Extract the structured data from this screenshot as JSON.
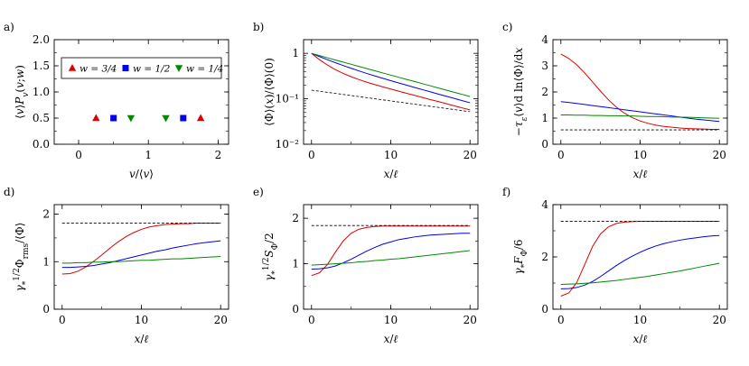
{
  "chart_data": [
    {
      "panel": "a",
      "panel_label": "a)",
      "type": "scatter",
      "xlabel": "v/⟨v⟩",
      "ylabel": "⟨v⟩P_v(v;w)",
      "xlim": [
        -0.35,
        2.15
      ],
      "ylim": [
        0,
        2
      ],
      "xscale": "linear",
      "yscale": "linear",
      "xticks": [
        0,
        1,
        2
      ],
      "xtick_labels": [
        "0",
        "1",
        "2"
      ],
      "yticks": [
        0,
        0.5,
        1,
        1.5,
        2
      ],
      "ytick_labels": [
        "0.0",
        "0.5",
        "1.0",
        "1.5",
        "2.0"
      ],
      "legend_position": "top-center",
      "series": [
        {
          "name": "w = 3/4",
          "label": "w = 3/4",
          "color": "#dd0000",
          "marker": "triangle-up",
          "x": [
            0.25,
            1.75
          ],
          "y": [
            0.5,
            0.5
          ]
        },
        {
          "name": "w = 1/2",
          "label": "w = 1/2",
          "color": "#0000ee",
          "marker": "square",
          "x": [
            0.5,
            1.5
          ],
          "y": [
            0.5,
            0.5
          ]
        },
        {
          "name": "w = 1/4",
          "label": "w = 1/4",
          "color": "#008800",
          "marker": "triangle-down",
          "x": [
            0.75,
            1.25
          ],
          "y": [
            0.5,
            0.5
          ]
        }
      ]
    },
    {
      "panel": "b",
      "panel_label": "b)",
      "type": "line",
      "xlabel": "x/ℓ",
      "ylabel": "⟨Φ⟩(x)/⟨Φ⟩(0)",
      "xlim": [
        -1,
        21
      ],
      "ylim": [
        0.01,
        2
      ],
      "xscale": "linear",
      "yscale": "log",
      "xticks": [
        0,
        10,
        20
      ],
      "xtick_labels": [
        "0",
        "10",
        "20"
      ],
      "yticks": [
        0.01,
        0.1,
        1
      ],
      "ytick_labels": [
        "10⁻²",
        "10⁻¹",
        "1"
      ],
      "series": [
        {
          "name": "w = 3/4",
          "color": "#dd0000",
          "dash": false,
          "x": [
            0,
            1,
            2,
            3,
            4,
            5,
            6,
            7,
            8,
            9,
            10,
            11,
            12,
            13,
            14,
            15,
            16,
            17,
            18,
            19,
            20
          ],
          "y": [
            1,
            0.727,
            0.554,
            0.44,
            0.362,
            0.306,
            0.264,
            0.231,
            0.205,
            0.183,
            0.164,
            0.147,
            0.132,
            0.119,
            0.107,
            0.096,
            0.087,
            0.078,
            0.07,
            0.063,
            0.057
          ]
        },
        {
          "name": "w = 1/2",
          "color": "#0000ee",
          "dash": false,
          "x": [
            0,
            1,
            2,
            3,
            4,
            5,
            6,
            7,
            8,
            9,
            10,
            11,
            12,
            13,
            14,
            15,
            16,
            17,
            18,
            19,
            20
          ],
          "y": [
            1,
            0.85,
            0.726,
            0.624,
            0.539,
            0.469,
            0.41,
            0.36,
            0.318,
            0.282,
            0.25,
            0.223,
            0.199,
            0.178,
            0.159,
            0.142,
            0.127,
            0.114,
            0.102,
            0.091,
            0.082
          ]
        },
        {
          "name": "w = 1/4",
          "color": "#008800",
          "dash": false,
          "x": [
            0,
            1,
            2,
            3,
            4,
            5,
            6,
            7,
            8,
            9,
            10,
            11,
            12,
            13,
            14,
            15,
            16,
            17,
            18,
            19,
            20
          ],
          "y": [
            1,
            0.894,
            0.8,
            0.716,
            0.641,
            0.574,
            0.514,
            0.461,
            0.413,
            0.37,
            0.332,
            0.298,
            0.267,
            0.24,
            0.215,
            0.193,
            0.173,
            0.155,
            0.139,
            0.125,
            0.112
          ]
        },
        {
          "name": "asymptote",
          "color": "#000000",
          "dash": true,
          "x": [
            0,
            20
          ],
          "y": [
            0.155,
            0.052
          ]
        }
      ]
    },
    {
      "panel": "c",
      "panel_label": "c)",
      "type": "line",
      "xlabel": "x/ℓ",
      "ylabel": "−τ_ε⟨v⟩d ln⟨Φ⟩/dx",
      "xlim": [
        -1,
        21
      ],
      "ylim": [
        0,
        4
      ],
      "xscale": "linear",
      "yscale": "linear",
      "xticks": [
        0,
        10,
        20
      ],
      "xtick_labels": [
        "0",
        "10",
        "20"
      ],
      "yticks": [
        0,
        1,
        2,
        3,
        4
      ],
      "ytick_labels": [
        "0",
        "1",
        "2",
        "3",
        "4"
      ],
      "series": [
        {
          "name": "w = 3/4",
          "color": "#dd0000",
          "dash": false,
          "x": [
            0,
            1,
            2,
            3,
            4,
            5,
            6,
            7,
            8,
            9,
            10,
            11,
            12,
            13,
            14,
            15,
            16,
            17,
            18,
            19,
            20
          ],
          "y": [
            3.45,
            3.28,
            3.04,
            2.73,
            2.38,
            2.03,
            1.7,
            1.42,
            1.19,
            1.02,
            0.89,
            0.8,
            0.73,
            0.68,
            0.65,
            0.62,
            0.6,
            0.59,
            0.58,
            0.57,
            0.57
          ]
        },
        {
          "name": "w = 1/2",
          "color": "#0000ee",
          "dash": false,
          "x": [
            0,
            1,
            2,
            3,
            4,
            5,
            6,
            7,
            8,
            9,
            10,
            11,
            12,
            13,
            14,
            15,
            16,
            17,
            18,
            19,
            20
          ],
          "y": [
            1.63,
            1.6,
            1.56,
            1.52,
            1.48,
            1.44,
            1.4,
            1.36,
            1.32,
            1.28,
            1.24,
            1.2,
            1.16,
            1.12,
            1.08,
            1.04,
            1.0,
            0.96,
            0.93,
            0.9,
            0.87
          ]
        },
        {
          "name": "w = 1/4",
          "color": "#008800",
          "dash": false,
          "x": [
            0,
            1,
            2,
            3,
            4,
            5,
            6,
            7,
            8,
            9,
            10,
            11,
            12,
            13,
            14,
            15,
            16,
            17,
            18,
            19,
            20
          ],
          "y": [
            1.12,
            1.12,
            1.11,
            1.11,
            1.1,
            1.1,
            1.09,
            1.09,
            1.08,
            1.08,
            1.07,
            1.06,
            1.06,
            1.05,
            1.04,
            1.04,
            1.03,
            1.02,
            1.01,
            1.0,
            0.99
          ]
        },
        {
          "name": "asymptote",
          "color": "#000000",
          "dash": true,
          "x": [
            0,
            20
          ],
          "y": [
            0.55,
            0.55
          ]
        }
      ]
    },
    {
      "panel": "d",
      "panel_label": "d)",
      "type": "line",
      "xlabel": "x/ℓ",
      "ylabel": "γ*^(1/2) Φrms/⟨Φ⟩",
      "xlim": [
        -1,
        21
      ],
      "ylim": [
        0,
        2.2
      ],
      "xscale": "linear",
      "yscale": "linear",
      "xticks": [
        0,
        10,
        20
      ],
      "xtick_labels": [
        "0",
        "10",
        "20"
      ],
      "yticks": [
        0,
        1,
        2
      ],
      "ytick_labels": [
        "0",
        "1",
        "2"
      ],
      "series": [
        {
          "name": "w = 3/4",
          "color": "#dd0000",
          "dash": false,
          "x": [
            0,
            1,
            2,
            3,
            4,
            5,
            6,
            7,
            8,
            9,
            10,
            11,
            12,
            13,
            14,
            15,
            16,
            17,
            18,
            19,
            20
          ],
          "y": [
            0.74,
            0.75,
            0.8,
            0.89,
            1.01,
            1.14,
            1.28,
            1.41,
            1.52,
            1.61,
            1.68,
            1.73,
            1.76,
            1.78,
            1.79,
            1.8,
            1.8,
            1.81,
            1.81,
            1.81,
            1.81
          ]
        },
        {
          "name": "w = 1/2",
          "color": "#0000ee",
          "dash": false,
          "x": [
            0,
            1,
            2,
            3,
            4,
            5,
            6,
            7,
            8,
            9,
            10,
            11,
            12,
            13,
            14,
            15,
            16,
            17,
            18,
            19,
            20
          ],
          "y": [
            0.88,
            0.88,
            0.89,
            0.9,
            0.92,
            0.95,
            0.98,
            1.02,
            1.06,
            1.1,
            1.14,
            1.18,
            1.22,
            1.25,
            1.29,
            1.32,
            1.35,
            1.38,
            1.4,
            1.42,
            1.44
          ]
        },
        {
          "name": "w = 1/4",
          "color": "#008800",
          "dash": false,
          "x": [
            0,
            1,
            2,
            3,
            4,
            5,
            6,
            7,
            8,
            9,
            10,
            11,
            12,
            13,
            14,
            15,
            16,
            17,
            18,
            19,
            20
          ],
          "y": [
            0.97,
            0.97,
            0.98,
            0.98,
            0.99,
            0.99,
            1.0,
            1.0,
            1.01,
            1.02,
            1.03,
            1.03,
            1.04,
            1.05,
            1.06,
            1.06,
            1.07,
            1.08,
            1.09,
            1.1,
            1.11
          ]
        },
        {
          "name": "asymptote",
          "color": "#000000",
          "dash": true,
          "x": [
            0,
            20
          ],
          "y": [
            1.81,
            1.81
          ]
        }
      ]
    },
    {
      "panel": "e",
      "panel_label": "e)",
      "type": "line",
      "xlabel": "x/ℓ",
      "ylabel": "γ*^(1/2) SΦ/2",
      "xlim": [
        -1,
        21
      ],
      "ylim": [
        0,
        2.3
      ],
      "xscale": "linear",
      "yscale": "linear",
      "xticks": [
        0,
        10,
        20
      ],
      "xtick_labels": [
        "0",
        "10",
        "20"
      ],
      "yticks": [
        0,
        1,
        2
      ],
      "ytick_labels": [
        "0",
        "1",
        "2"
      ],
      "series": [
        {
          "name": "w = 3/4",
          "color": "#dd0000",
          "dash": false,
          "x": [
            0,
            1,
            2,
            3,
            4,
            5,
            6,
            7,
            8,
            9,
            10,
            11,
            12,
            13,
            14,
            15,
            16,
            17,
            18,
            19,
            20
          ],
          "y": [
            0.74,
            0.8,
            0.98,
            1.25,
            1.5,
            1.67,
            1.76,
            1.8,
            1.82,
            1.83,
            1.83,
            1.83,
            1.83,
            1.83,
            1.83,
            1.83,
            1.83,
            1.83,
            1.83,
            1.83,
            1.83
          ]
        },
        {
          "name": "w = 1/2",
          "color": "#0000ee",
          "dash": false,
          "x": [
            0,
            1,
            2,
            3,
            4,
            5,
            6,
            7,
            8,
            9,
            10,
            11,
            12,
            13,
            14,
            15,
            16,
            17,
            18,
            19,
            20
          ],
          "y": [
            0.88,
            0.89,
            0.91,
            0.95,
            1.02,
            1.1,
            1.19,
            1.28,
            1.36,
            1.43,
            1.48,
            1.53,
            1.56,
            1.59,
            1.61,
            1.63,
            1.64,
            1.65,
            1.66,
            1.67,
            1.67
          ]
        },
        {
          "name": "w = 1/4",
          "color": "#008800",
          "dash": false,
          "x": [
            0,
            1,
            2,
            3,
            4,
            5,
            6,
            7,
            8,
            9,
            10,
            11,
            12,
            13,
            14,
            15,
            16,
            17,
            18,
            19,
            20
          ],
          "y": [
            0.97,
            0.98,
            0.99,
            1.0,
            1.01,
            1.02,
            1.04,
            1.05,
            1.07,
            1.08,
            1.1,
            1.11,
            1.13,
            1.15,
            1.17,
            1.19,
            1.21,
            1.23,
            1.25,
            1.27,
            1.29
          ]
        },
        {
          "name": "asymptote",
          "color": "#000000",
          "dash": true,
          "x": [
            0,
            20
          ],
          "y": [
            1.84,
            1.84
          ]
        }
      ]
    },
    {
      "panel": "f",
      "panel_label": "f)",
      "type": "line",
      "xlabel": "x/ℓ",
      "ylabel": "γ* FΦ/6",
      "xlim": [
        -1,
        21
      ],
      "ylim": [
        0,
        4
      ],
      "xscale": "linear",
      "yscale": "linear",
      "xticks": [
        0,
        10,
        20
      ],
      "xtick_labels": [
        "0",
        "10",
        "20"
      ],
      "yticks": [
        0,
        2,
        4
      ],
      "ytick_labels": [
        "0",
        "2",
        "4"
      ],
      "series": [
        {
          "name": "w = 3/4",
          "color": "#dd0000",
          "dash": false,
          "x": [
            0,
            1,
            2,
            3,
            4,
            5,
            6,
            7,
            8,
            9,
            10,
            11,
            12,
            13,
            14,
            15,
            16,
            17,
            18,
            19,
            20
          ],
          "y": [
            0.5,
            0.62,
            1.02,
            1.7,
            2.4,
            2.88,
            3.15,
            3.28,
            3.33,
            3.35,
            3.36,
            3.36,
            3.36,
            3.36,
            3.36,
            3.36,
            3.36,
            3.36,
            3.36,
            3.36,
            3.36
          ]
        },
        {
          "name": "w = 1/2",
          "color": "#0000ee",
          "dash": false,
          "x": [
            0,
            1,
            2,
            3,
            4,
            5,
            6,
            7,
            8,
            9,
            10,
            11,
            12,
            13,
            14,
            15,
            16,
            17,
            18,
            19,
            20
          ],
          "y": [
            0.78,
            0.79,
            0.83,
            0.92,
            1.06,
            1.25,
            1.46,
            1.67,
            1.86,
            2.03,
            2.18,
            2.31,
            2.42,
            2.51,
            2.58,
            2.64,
            2.69,
            2.73,
            2.77,
            2.8,
            2.82
          ]
        },
        {
          "name": "w = 1/4",
          "color": "#008800",
          "dash": false,
          "x": [
            0,
            1,
            2,
            3,
            4,
            5,
            6,
            7,
            8,
            9,
            10,
            11,
            12,
            13,
            14,
            15,
            16,
            17,
            18,
            19,
            20
          ],
          "y": [
            0.95,
            0.96,
            0.97,
            0.99,
            1.01,
            1.04,
            1.07,
            1.1,
            1.14,
            1.18,
            1.22,
            1.26,
            1.31,
            1.36,
            1.41,
            1.46,
            1.52,
            1.58,
            1.64,
            1.7,
            1.76
          ]
        },
        {
          "name": "asymptote",
          "color": "#000000",
          "dash": true,
          "x": [
            0,
            20
          ],
          "y": [
            3.36,
            3.36
          ]
        }
      ]
    }
  ]
}
